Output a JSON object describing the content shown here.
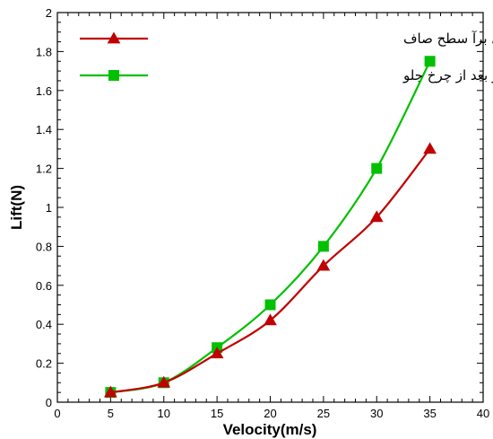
{
  "chart_data": {
    "type": "line",
    "xlabel": "Velocity(m/s)",
    "ylabel": "Lift(N)",
    "xlim": [
      0,
      40
    ],
    "ylim": [
      0,
      2
    ],
    "xticks": [
      "0",
      "5",
      "10",
      "15",
      "20",
      "25",
      "30",
      "35",
      "40"
    ],
    "yticks": [
      "0",
      "0.2",
      "0.4",
      "0.6",
      "0.8",
      "1",
      "1.2",
      "1.4",
      "1.6",
      "1.8",
      "2"
    ],
    "grid": false,
    "legend_position": "top-right",
    "series": [
      {
        "name": "نیروی برآ سطح صاف",
        "color": "#c00000",
        "marker": "triangle",
        "x": [
          5,
          10,
          15,
          20,
          25,
          30,
          35
        ],
        "y": [
          0.05,
          0.1,
          0.25,
          0.42,
          0.7,
          0.95,
          1.3
        ]
      },
      {
        "name": "نیروی برآ سطح زبر بعد از چرخ جلو",
        "color": "#00c000",
        "marker": "square",
        "x": [
          5,
          10,
          15,
          20,
          25,
          30,
          35
        ],
        "y": [
          0.05,
          0.1,
          0.28,
          0.5,
          0.8,
          1.2,
          1.75
        ]
      }
    ]
  }
}
